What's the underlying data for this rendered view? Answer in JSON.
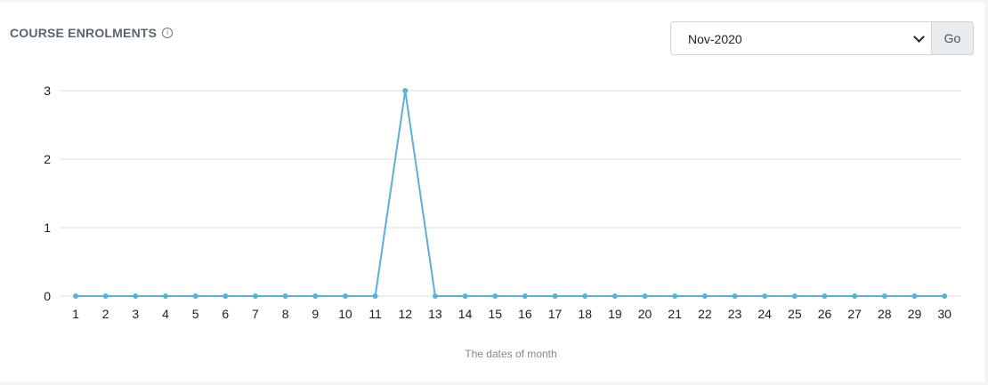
{
  "header": {
    "title": "COURSE ENROLMENTS",
    "info_icon": "info-circle-icon"
  },
  "controls": {
    "month_select_value": "Nov-2020",
    "go_label": "Go"
  },
  "colors": {
    "line": "#5bb0d6",
    "grid": "#dddddd",
    "title": "#5b646e"
  },
  "chart_data": {
    "type": "line",
    "title": "COURSE ENROLMENTS",
    "xlabel": "The dates of month",
    "ylabel": "",
    "categories": [
      "1",
      "2",
      "3",
      "4",
      "5",
      "6",
      "7",
      "8",
      "9",
      "10",
      "11",
      "12",
      "13",
      "14",
      "15",
      "16",
      "17",
      "18",
      "19",
      "20",
      "21",
      "22",
      "23",
      "24",
      "25",
      "26",
      "27",
      "28",
      "29",
      "30"
    ],
    "series": [
      {
        "values": [
          0,
          0,
          0,
          0,
          0,
          0,
          0,
          0,
          0,
          0,
          0,
          3,
          0,
          0,
          0,
          0,
          0,
          0,
          0,
          0,
          0,
          0,
          0,
          0,
          0,
          0,
          0,
          0,
          0,
          0
        ]
      }
    ],
    "yticks": [
      "0",
      "1",
      "2",
      "3"
    ],
    "ylim": [
      0,
      3
    ],
    "grid": true,
    "legend": "none"
  }
}
